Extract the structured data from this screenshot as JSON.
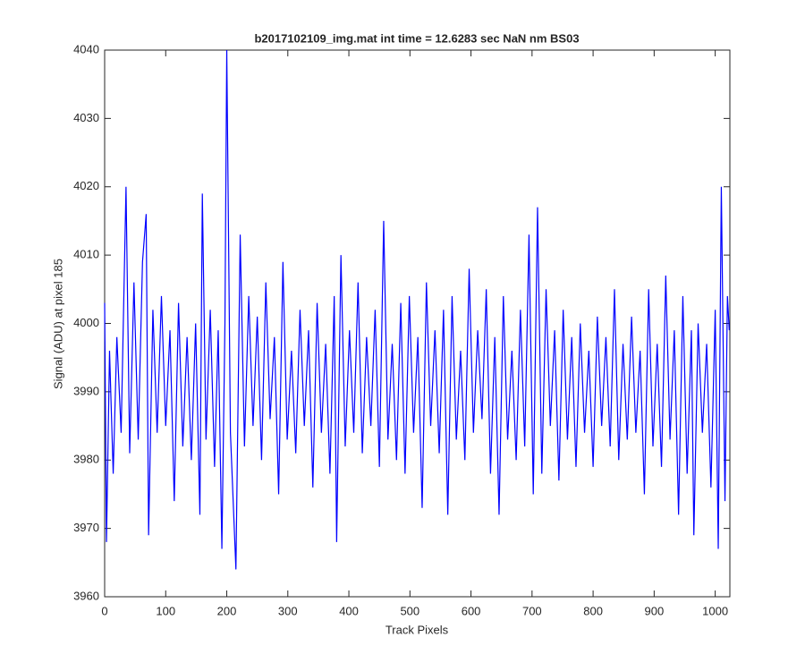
{
  "chart_data": {
    "type": "line",
    "title": "b2017102109_img.mat int time = 12.6283 sec  NaN nm BS03",
    "x_label": "Track Pixels",
    "y_label": "Signal (ADU) at pixel 185",
    "xlim": [
      0,
      1024
    ],
    "ylim": [
      3960,
      4040
    ],
    "xticks": [
      0,
      100,
      200,
      300,
      400,
      500,
      600,
      700,
      800,
      900,
      1000
    ],
    "yticks": [
      3960,
      3970,
      3980,
      3990,
      4000,
      4010,
      4020,
      4030,
      4040
    ],
    "grid": false,
    "x": [
      0,
      3,
      8,
      14,
      20,
      27,
      35,
      41,
      48,
      55,
      62,
      68,
      72,
      79,
      86,
      93,
      100,
      107,
      114,
      121,
      128,
      135,
      142,
      149,
      156,
      160,
      166,
      173,
      180,
      186,
      192,
      197,
      200,
      206,
      215,
      222,
      229,
      236,
      243,
      250,
      257,
      264,
      271,
      278,
      285,
      292,
      299,
      306,
      313,
      320,
      327,
      334,
      341,
      348,
      355,
      362,
      369,
      376,
      380,
      387,
      394,
      401,
      408,
      415,
      422,
      429,
      436,
      443,
      450,
      457,
      464,
      471,
      478,
      485,
      492,
      499,
      506,
      513,
      520,
      527,
      534,
      541,
      548,
      555,
      562,
      569,
      576,
      583,
      590,
      597,
      604,
      611,
      618,
      625,
      632,
      639,
      646,
      653,
      660,
      667,
      674,
      681,
      688,
      695,
      702,
      709,
      716,
      723,
      730,
      737,
      744,
      751,
      758,
      765,
      772,
      779,
      786,
      793,
      800,
      807,
      814,
      821,
      828,
      835,
      842,
      849,
      856,
      863,
      870,
      877,
      884,
      891,
      898,
      905,
      912,
      919,
      926,
      933,
      940,
      947,
      954,
      961,
      965,
      972,
      979,
      986,
      993,
      1000,
      1005,
      1010,
      1016,
      1020,
      1023
    ],
    "series": [
      {
        "name": "signal",
        "color": "#0000ff",
        "values": [
          4003,
          3968,
          3996,
          3978,
          3998,
          3984,
          4020,
          3981,
          4006,
          3983,
          4009,
          4016,
          3969,
          4002,
          3984,
          4004,
          3985,
          3999,
          3974,
          4003,
          3982,
          3998,
          3980,
          4000,
          3972,
          4019,
          3983,
          4002,
          3979,
          3999,
          3967,
          4000,
          4040,
          3984,
          3964,
          4013,
          3982,
          4004,
          3985,
          4001,
          3980,
          4006,
          3986,
          3998,
          3975,
          4009,
          3983,
          3996,
          3981,
          4002,
          3985,
          3999,
          3976,
          4003,
          3984,
          3997,
          3978,
          4004,
          3968,
          4010,
          3982,
          3999,
          3984,
          4006,
          3981,
          3998,
          3985,
          4002,
          3979,
          4015,
          3983,
          3997,
          3980,
          4003,
          3978,
          4004,
          3984,
          3998,
          3973,
          4006,
          3985,
          3999,
          3981,
          4002,
          3972,
          4004,
          3983,
          3996,
          3980,
          4008,
          3984,
          3999,
          3986,
          4005,
          3978,
          3998,
          3972,
          4004,
          3983,
          3996,
          3980,
          4002,
          3982,
          4013,
          3975,
          4017,
          3978,
          4005,
          3985,
          3999,
          3977,
          4002,
          3983,
          3998,
          3979,
          4000,
          3984,
          3996,
          3979,
          4001,
          3985,
          3998,
          3982,
          4005,
          3980,
          3997,
          3983,
          4001,
          3984,
          3996,
          3975,
          4005,
          3982,
          3997,
          3979,
          4007,
          3983,
          3999,
          3972,
          4004,
          3978,
          3999,
          3969,
          4000,
          3984,
          3997,
          3976,
          4002,
          3967,
          4020,
          3974,
          4004,
          3999
        ]
      }
    ]
  }
}
